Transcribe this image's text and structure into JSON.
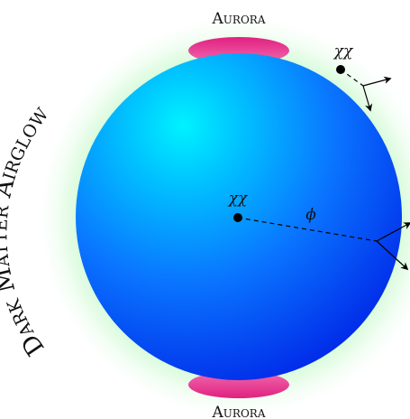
{
  "labels": {
    "aurora_top": "Aurora",
    "aurora_bottom": "Aurora",
    "airglow": "Dark Matter Airglow",
    "dm_pair_center": "χχ",
    "dm_pair_corner": "χχ",
    "mediator": "ϕ"
  },
  "colors": {
    "planet_highlight": "#00f2ff",
    "planet_mid": "#0a8cff",
    "planet_edge": "#0022e6",
    "glow": "#9ef5a8",
    "aurora": "#e0217f",
    "ink": "#000000"
  }
}
